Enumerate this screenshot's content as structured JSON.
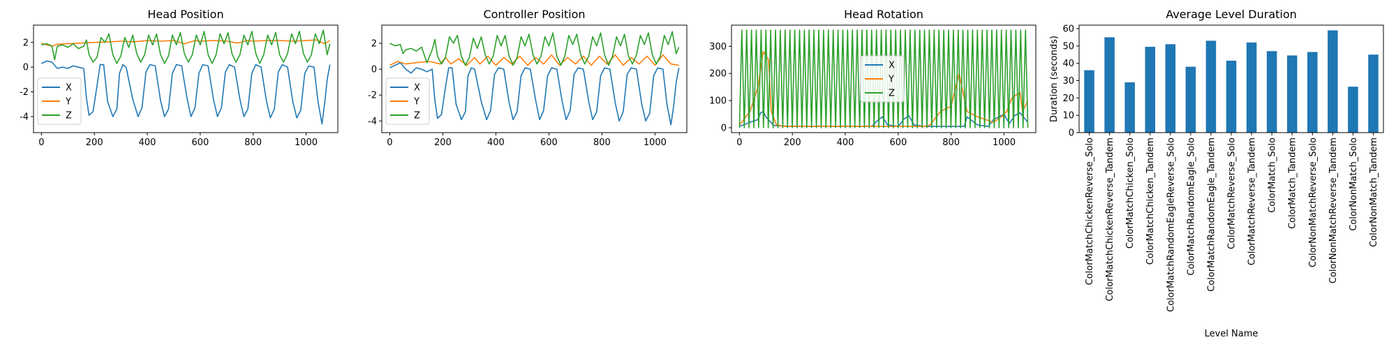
{
  "colors": {
    "x": "#1f77b4",
    "y": "#ff7f0e",
    "z": "#2ca02c",
    "bar": "#1f77b4"
  },
  "chart_data": [
    {
      "type": "line",
      "title": "Head Position",
      "xlim": [
        -30,
        1120
      ],
      "ylim": [
        -5.3,
        3.4
      ],
      "xticks": [
        0,
        200,
        400,
        600,
        800,
        1000
      ],
      "yticks": [
        2,
        0,
        -2,
        -4
      ],
      "legend": {
        "placement": "center-left",
        "entries": [
          "X",
          "Y",
          "Z"
        ]
      },
      "series": [
        {
          "name": "X",
          "key": "x",
          "x": [
            0,
            20,
            40,
            60,
            80,
            100,
            120,
            140,
            160,
            170,
            180,
            195,
            210,
            222,
            235,
            250,
            270,
            285,
            295,
            308,
            320,
            345,
            365,
            380,
            395,
            410,
            430,
            450,
            465,
            480,
            495,
            510,
            530,
            550,
            565,
            580,
            595,
            610,
            630,
            650,
            665,
            680,
            695,
            710,
            730,
            750,
            765,
            780,
            795,
            810,
            830,
            850,
            865,
            880,
            895,
            910,
            930,
            950,
            965,
            980,
            995,
            1010,
            1030,
            1045,
            1060,
            1070,
            1080,
            1090
          ],
          "y": [
            0.3,
            0.5,
            0.4,
            -0.1,
            0.0,
            -0.1,
            0.1,
            0.0,
            -0.1,
            -2.5,
            -3.9,
            -3.6,
            -1.5,
            0.2,
            0.2,
            -2.8,
            -4.0,
            -3.4,
            -0.5,
            0.2,
            0.0,
            -2.6,
            -4.0,
            -3.3,
            -0.4,
            0.2,
            0.1,
            -2.7,
            -4.0,
            -3.4,
            -0.5,
            0.2,
            0.1,
            -2.5,
            -4.0,
            -3.3,
            -0.5,
            0.2,
            0.1,
            -2.6,
            -4.0,
            -3.3,
            -0.4,
            0.2,
            0.0,
            -2.6,
            -4.0,
            -3.4,
            -0.5,
            0.2,
            0.0,
            -2.7,
            -4.1,
            -3.4,
            -0.4,
            0.2,
            0.0,
            -2.8,
            -4.1,
            -3.5,
            -0.5,
            0.1,
            0.0,
            -2.8,
            -4.6,
            -3.0,
            -1.0,
            0.2
          ]
        },
        {
          "name": "Y",
          "key": "y",
          "x": [
            0,
            20,
            40,
            60,
            100,
            150,
            200,
            260,
            300,
            350,
            400,
            450,
            500,
            540,
            580,
            600,
            650,
            700,
            740,
            780,
            800,
            850,
            900,
            950,
            1000,
            1040,
            1070,
            1090
          ],
          "y": [
            1.95,
            1.8,
            1.7,
            1.85,
            1.9,
            1.95,
            2.0,
            2.05,
            2.1,
            2.05,
            2.15,
            2.1,
            2.15,
            1.9,
            2.15,
            2.1,
            2.15,
            2.1,
            1.95,
            2.15,
            2.1,
            2.15,
            2.15,
            2.1,
            2.15,
            2.2,
            1.9,
            2.15
          ]
        },
        {
          "name": "Z",
          "key": "z",
          "x": [
            0,
            20,
            40,
            50,
            60,
            80,
            100,
            120,
            140,
            160,
            170,
            180,
            195,
            210,
            225,
            240,
            255,
            270,
            285,
            300,
            315,
            330,
            345,
            360,
            375,
            390,
            405,
            420,
            435,
            450,
            465,
            480,
            495,
            510,
            525,
            540,
            555,
            570,
            585,
            600,
            615,
            630,
            645,
            660,
            675,
            690,
            705,
            720,
            735,
            750,
            765,
            780,
            795,
            810,
            825,
            840,
            855,
            870,
            885,
            900,
            915,
            930,
            945,
            960,
            975,
            990,
            1005,
            1020,
            1035,
            1050,
            1065,
            1080,
            1090
          ],
          "y": [
            1.8,
            1.9,
            1.7,
            0.6,
            1.7,
            1.8,
            1.6,
            1.9,
            1.5,
            1.7,
            2.2,
            1.0,
            0.4,
            0.8,
            2.4,
            2.0,
            2.7,
            1.0,
            0.3,
            0.9,
            2.4,
            1.6,
            2.6,
            1.1,
            0.4,
            1.0,
            2.6,
            1.8,
            2.7,
            1.0,
            0.3,
            0.9,
            2.6,
            1.8,
            2.8,
            1.1,
            0.4,
            1.0,
            2.6,
            1.8,
            2.9,
            1.0,
            0.3,
            1.0,
            2.7,
            1.9,
            2.8,
            1.1,
            0.4,
            1.0,
            2.6,
            1.8,
            2.9,
            1.1,
            0.3,
            1.0,
            2.6,
            1.8,
            2.8,
            1.0,
            0.4,
            1.1,
            2.7,
            1.9,
            2.9,
            1.1,
            0.4,
            1.0,
            2.7,
            1.9,
            3.0,
            1.0,
            1.9
          ]
        }
      ]
    },
    {
      "type": "line",
      "title": "Controller Position",
      "xlim": [
        -30,
        1120
      ],
      "ylim": [
        -4.9,
        3.4
      ],
      "xticks": [
        0,
        200,
        400,
        600,
        800,
        1000
      ],
      "yticks": [
        2,
        0,
        -2,
        -4
      ],
      "legend": {
        "placement": "center-left",
        "entries": [
          "X",
          "Y",
          "Z"
        ]
      },
      "series": [
        {
          "name": "X",
          "key": "x",
          "x": [
            0,
            20,
            40,
            60,
            80,
            100,
            120,
            140,
            160,
            170,
            180,
            195,
            210,
            222,
            235,
            250,
            270,
            285,
            295,
            308,
            320,
            345,
            365,
            380,
            395,
            410,
            430,
            450,
            465,
            480,
            495,
            510,
            530,
            550,
            565,
            580,
            595,
            610,
            630,
            650,
            665,
            680,
            695,
            710,
            730,
            750,
            765,
            780,
            795,
            810,
            830,
            850,
            865,
            880,
            895,
            910,
            930,
            950,
            965,
            980,
            995,
            1010,
            1030,
            1045,
            1060,
            1070,
            1080,
            1090
          ],
          "y": [
            0.1,
            0.3,
            0.5,
            0.0,
            -0.3,
            0.1,
            0.0,
            -0.2,
            0.0,
            -2.4,
            -3.8,
            -3.5,
            -1.4,
            0.1,
            0.1,
            -2.7,
            -3.9,
            -3.3,
            -0.5,
            0.1,
            0.0,
            -2.5,
            -3.9,
            -3.2,
            -0.4,
            0.1,
            0.0,
            -2.6,
            -3.9,
            -3.3,
            -0.5,
            0.1,
            0.0,
            -2.4,
            -3.9,
            -3.2,
            -0.5,
            0.1,
            0.0,
            -2.5,
            -3.9,
            -3.2,
            -0.4,
            0.1,
            0.0,
            -2.5,
            -3.9,
            -3.3,
            -0.5,
            0.1,
            0.0,
            -2.6,
            -4.0,
            -3.3,
            -0.4,
            0.1,
            0.0,
            -2.7,
            -4.0,
            -3.4,
            -0.5,
            0.1,
            0.0,
            -2.7,
            -4.3,
            -2.9,
            -1.0,
            0.1
          ]
        },
        {
          "name": "Y",
          "key": "y",
          "x": [
            0,
            30,
            60,
            100,
            150,
            190,
            210,
            230,
            260,
            290,
            320,
            340,
            370,
            400,
            430,
            460,
            490,
            520,
            550,
            580,
            610,
            640,
            670,
            700,
            730,
            760,
            790,
            820,
            850,
            880,
            910,
            940,
            970,
            1000,
            1030,
            1060,
            1090
          ],
          "y": [
            0.3,
            0.6,
            0.4,
            0.5,
            0.6,
            0.4,
            0.9,
            0.4,
            0.8,
            0.3,
            0.9,
            0.4,
            1.0,
            0.3,
            0.9,
            0.4,
            1.0,
            0.3,
            0.9,
            0.4,
            1.1,
            0.3,
            0.9,
            0.4,
            1.0,
            0.3,
            1.0,
            0.4,
            1.1,
            0.3,
            0.9,
            0.4,
            1.0,
            0.3,
            1.1,
            0.4,
            0.3
          ]
        },
        {
          "name": "Z",
          "key": "z",
          "x": [
            0,
            20,
            40,
            50,
            60,
            80,
            100,
            120,
            140,
            160,
            170,
            180,
            195,
            210,
            225,
            240,
            255,
            270,
            285,
            300,
            315,
            330,
            345,
            360,
            375,
            390,
            405,
            420,
            435,
            450,
            465,
            480,
            495,
            510,
            525,
            540,
            555,
            570,
            585,
            600,
            615,
            630,
            645,
            660,
            675,
            690,
            705,
            720,
            735,
            750,
            765,
            780,
            795,
            810,
            825,
            840,
            855,
            870,
            885,
            900,
            915,
            930,
            945,
            960,
            975,
            990,
            1005,
            1020,
            1035,
            1050,
            1065,
            1080,
            1090
          ],
          "y": [
            2.0,
            1.8,
            1.9,
            1.2,
            1.5,
            1.6,
            1.4,
            1.7,
            0.5,
            1.5,
            2.3,
            1.0,
            0.4,
            0.9,
            2.5,
            2.0,
            2.6,
            1.0,
            0.3,
            0.9,
            2.4,
            1.6,
            2.5,
            1.1,
            0.4,
            1.0,
            2.6,
            1.8,
            2.6,
            1.0,
            0.3,
            0.9,
            2.5,
            1.8,
            2.7,
            1.1,
            0.4,
            1.0,
            2.5,
            1.8,
            2.8,
            1.0,
            0.3,
            1.0,
            2.6,
            1.9,
            2.7,
            1.1,
            0.4,
            1.0,
            2.5,
            1.8,
            2.8,
            1.1,
            0.3,
            1.0,
            2.5,
            1.8,
            2.7,
            1.0,
            0.4,
            1.1,
            2.6,
            1.9,
            2.8,
            1.1,
            0.4,
            1.0,
            2.6,
            1.9,
            2.9,
            1.2,
            1.7
          ]
        }
      ]
    },
    {
      "type": "line",
      "title": "Head Rotation",
      "xlim": [
        -30,
        1120
      ],
      "ylim": [
        -18,
        378
      ],
      "xticks": [
        0,
        200,
        400,
        600,
        800,
        1000
      ],
      "yticks": [
        300,
        200,
        100,
        0
      ],
      "legend": {
        "placement": "center-right",
        "entries": [
          "X",
          "Y",
          "Z"
        ]
      },
      "series": [
        {
          "name": "X",
          "key": "x",
          "x": [
            0,
            40,
            70,
            80,
            90,
            100,
            130,
            200,
            300,
            400,
            500,
            520,
            540,
            560,
            600,
            620,
            640,
            660,
            700,
            800,
            850,
            860,
            900,
            940,
            960,
            1000,
            1020,
            1040,
            1060,
            1090
          ],
          "y": [
            5,
            20,
            30,
            55,
            60,
            40,
            8,
            5,
            5,
            5,
            5,
            25,
            40,
            10,
            5,
            30,
            45,
            10,
            5,
            5,
            5,
            40,
            10,
            5,
            30,
            50,
            15,
            45,
            55,
            20
          ]
        },
        {
          "name": "Y",
          "key": "y",
          "x": [
            0,
            40,
            70,
            90,
            110,
            120,
            140,
            170,
            200,
            300,
            500,
            600,
            700,
            720,
            760,
            800,
            830,
            845,
            860,
            900,
            960,
            990,
            1010,
            1030,
            1060,
            1070,
            1090
          ],
          "y": [
            10,
            60,
            150,
            280,
            250,
            60,
            10,
            5,
            5,
            5,
            5,
            5,
            5,
            10,
            60,
            80,
            200,
            130,
            60,
            40,
            20,
            40,
            60,
            110,
            130,
            60,
            100
          ]
        },
        {
          "name": "Z",
          "key": "z",
          "x": [
            0,
            1090
          ],
          "y": [
            0,
            360
          ]
        }
      ]
    },
    {
      "type": "bar",
      "title": "Average Level Duration",
      "xlabel": "Level Name",
      "ylabel": "Duration (seconds)",
      "ylim": [
        0,
        62
      ],
      "yticks": [
        0,
        10,
        20,
        30,
        40,
        50,
        60
      ],
      "categories": [
        "ColorMatchChickenReverse_Solo",
        "ColorMatchChickenReverse_Tandem",
        "ColorMatchChicken_Solo",
        "ColorMatchChicken_Tandem",
        "ColorMatchRandomEagleReverse_Solo",
        "ColorMatchRandomEagle_Solo",
        "ColorMatchRandomEagle_Tandem",
        "ColorMatchReverse_Solo",
        "ColorMatchReverse_Tandem",
        "ColorMatch_Solo",
        "ColorMatch_Tandem",
        "ColorNonMatchReverse_Solo",
        "ColorNonMatchReverse_Tandem",
        "ColorNonMatch_Solo",
        "ColorNonMatch_Tandem"
      ],
      "values": [
        36,
        55,
        29,
        49.5,
        51,
        38,
        53,
        41.5,
        52,
        47,
        44.5,
        46.5,
        59,
        26.5,
        45
      ]
    }
  ]
}
